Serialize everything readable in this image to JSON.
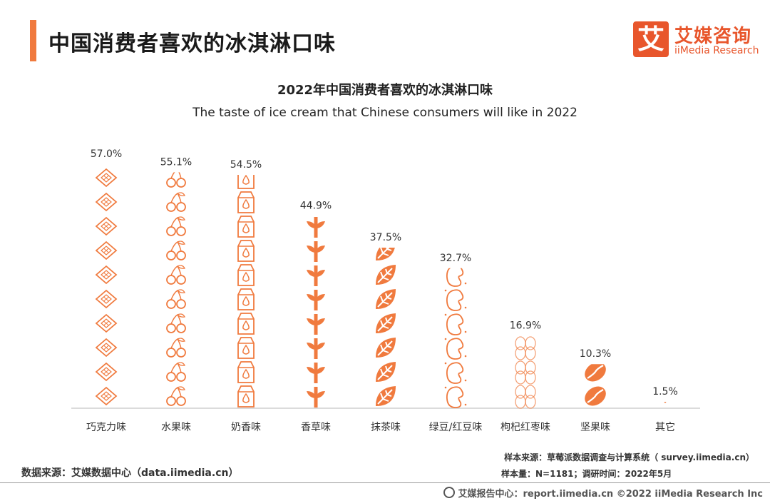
{
  "header": {
    "title": "中国消费者喜欢的冰淇淋口味",
    "logo_mark": "艾",
    "logo_cn": "艾媒咨询",
    "logo_en": "iiMedia Research"
  },
  "chart_data": {
    "type": "bar",
    "title": "2022年中国消费者喜欢的冰淇淋口味",
    "subtitle": "The taste of ice cream that Chinese consumers will like in 2022",
    "categories": [
      "巧克力味",
      "水果味",
      "奶香味",
      "香草味",
      "抹茶味",
      "绿豆/红豆味",
      "枸杞红枣味",
      "坚果味",
      "其它"
    ],
    "values": [
      57.0,
      55.1,
      54.5,
      44.9,
      37.5,
      32.7,
      16.9,
      10.3,
      1.5
    ],
    "value_labels": [
      "57.0%",
      "55.1%",
      "54.5%",
      "44.9%",
      "37.5%",
      "32.7%",
      "16.9%",
      "10.3%",
      "1.5%"
    ],
    "icons": [
      "chocolate-icon",
      "cherry-icon",
      "milk-carton-icon",
      "vanilla-sprout-icon",
      "matcha-leaf-icon",
      "bean-icon",
      "date-icon",
      "nut-icon",
      "other-icon"
    ],
    "unit": "%",
    "ylim": [
      0,
      57.0
    ],
    "color": "#F07A3E"
  },
  "sources": {
    "data_source": "数据来源：艾媒数据中心（data.iimedia.cn）",
    "sample_source": "样本来源：草莓派数据调查与计算系统（ survey.iimedia.cn）",
    "sample_info": "样本量：N=1181；调研时间：2022年5月"
  },
  "footer": {
    "text": "艾媒报告中心：report.iimedia.cn  ©2022  iiMedia Research  Inc"
  }
}
